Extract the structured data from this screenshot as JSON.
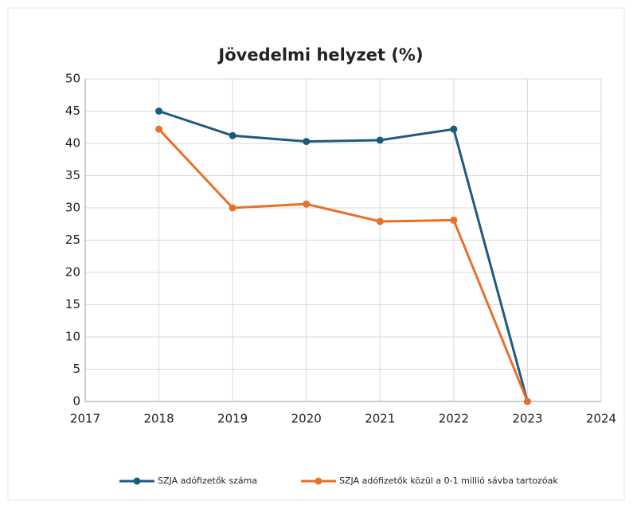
{
  "chart_data": {
    "type": "line",
    "title": "Jövedelmi helyzet (%)",
    "x": [
      2018,
      2019,
      2020,
      2021,
      2022,
      2023
    ],
    "series": [
      {
        "name": "SZJA adófizetők száma",
        "color": "#1d5b7e",
        "values": [
          45,
          41.2,
          40.3,
          40.5,
          42.2,
          0
        ]
      },
      {
        "name": "SZJA adófizetők közül a 0-1 millió sávba tartozóak",
        "color": "#e8702a",
        "values": [
          42.2,
          30,
          30.6,
          27.9,
          28.1,
          0
        ]
      }
    ],
    "xlim": [
      2017,
      2024
    ],
    "xticks": [
      2017,
      2018,
      2019,
      2020,
      2021,
      2022,
      2023,
      2024
    ],
    "ylim": [
      0,
      50
    ],
    "yticks": [
      0,
      5,
      10,
      15,
      20,
      25,
      30,
      35,
      40,
      45,
      50
    ],
    "grid": true,
    "legend": "bottom"
  }
}
